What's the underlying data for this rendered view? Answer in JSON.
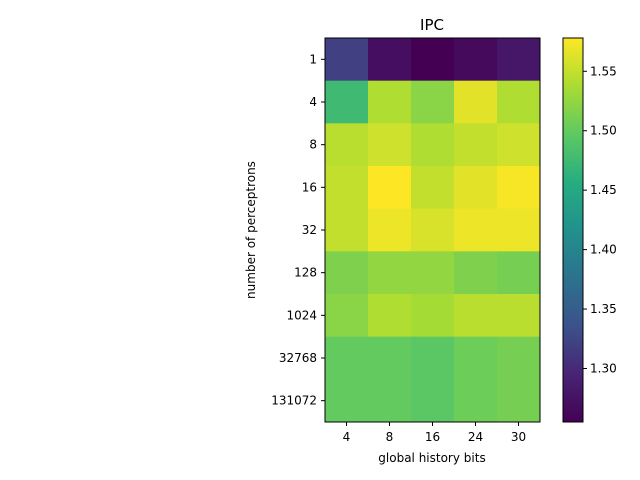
{
  "chart_data": {
    "type": "heatmap",
    "title": "IPC",
    "xlabel": "global history bits",
    "ylabel": "number of perceptrons",
    "x_categories": [
      "4",
      "8",
      "16",
      "24",
      "30"
    ],
    "y_categories": [
      "1",
      "4",
      "8",
      "16",
      "32",
      "128",
      "1024",
      "32768",
      "131072"
    ],
    "values": [
      [
        1.32,
        1.27,
        1.255,
        1.265,
        1.28
      ],
      [
        1.475,
        1.54,
        1.52,
        1.565,
        1.54
      ],
      [
        1.545,
        1.555,
        1.54,
        1.55,
        1.555
      ],
      [
        1.55,
        1.578,
        1.55,
        1.565,
        1.575
      ],
      [
        1.55,
        1.57,
        1.56,
        1.57,
        1.57
      ],
      [
        1.515,
        1.525,
        1.525,
        1.515,
        1.51
      ],
      [
        1.52,
        1.54,
        1.535,
        1.545,
        1.545
      ],
      [
        1.5,
        1.5,
        1.495,
        1.505,
        1.51
      ],
      [
        1.5,
        1.5,
        1.495,
        1.505,
        1.51
      ]
    ],
    "colormap": "viridis",
    "vmin": 1.255,
    "vmax": 1.578,
    "colorbar_ticks": [
      "1.30",
      "1.35",
      "1.40",
      "1.45",
      "1.50",
      "1.55"
    ]
  }
}
